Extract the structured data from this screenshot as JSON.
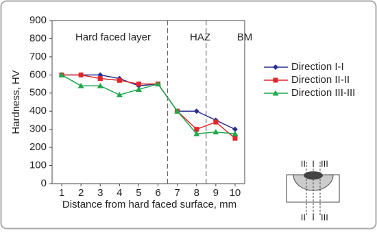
{
  "chart_data": {
    "type": "line",
    "x_label": "Distance from hard faced surface, mm",
    "y_label": "Hardness, HV",
    "x": [
      1,
      2,
      3,
      4,
      5,
      6,
      7,
      8,
      9,
      10
    ],
    "xlim": [
      0.5,
      10.5
    ],
    "xticks": [
      1,
      2,
      3,
      4,
      5,
      6,
      7,
      8,
      9,
      10
    ],
    "ylim": [
      0,
      900
    ],
    "yticks": [
      0,
      100,
      200,
      300,
      400,
      500,
      600,
      700,
      800,
      900
    ],
    "series": [
      {
        "name": "Direction I-I",
        "color": "#2a2f8f",
        "marker": "diamond",
        "values": [
          600,
          600,
          600,
          580,
          540,
          550,
          400,
          400,
          350,
          300
        ]
      },
      {
        "name": "Direction II-II",
        "color": "#e0262a",
        "marker": "square",
        "values": [
          600,
          600,
          580,
          570,
          550,
          550,
          400,
          300,
          340,
          250
        ]
      },
      {
        "name": "Direction III-III",
        "color": "#1fa84a",
        "marker": "triangle",
        "values": [
          600,
          540,
          540,
          490,
          520,
          550,
          400,
          275,
          285,
          275
        ]
      }
    ],
    "dividers": [
      6.5,
      8.5
    ],
    "annotations": [
      "Hard faced layer",
      "HAZ",
      "BM"
    ],
    "legend": "right",
    "schematic_labels": [
      "II",
      "I",
      "III"
    ]
  }
}
